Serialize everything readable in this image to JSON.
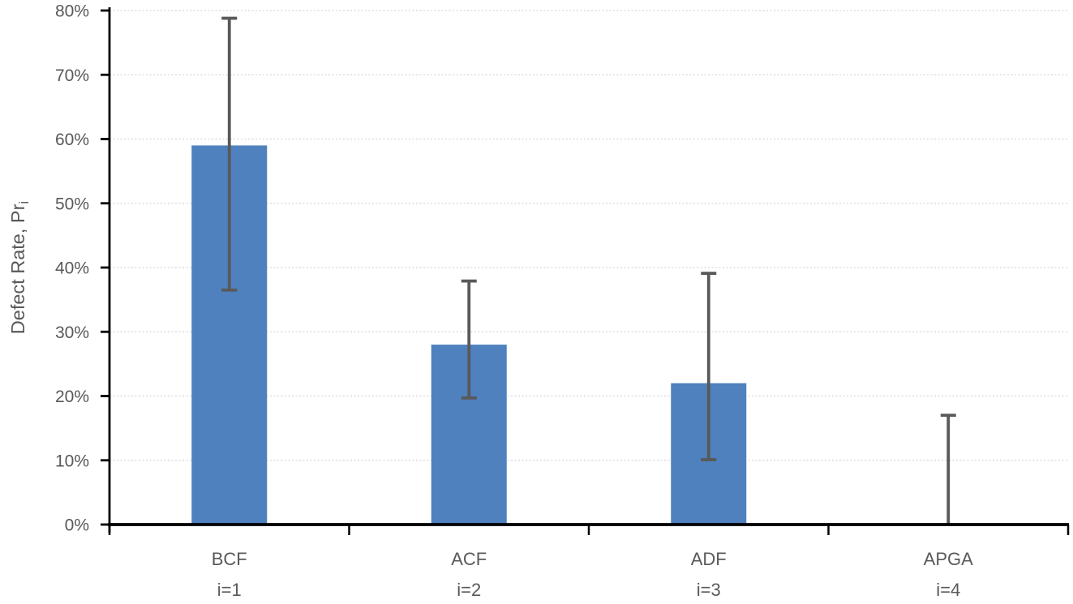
{
  "chart_data": {
    "type": "bar",
    "title": "",
    "categories": [
      "BCF",
      "ACF",
      "ADF",
      "APGA"
    ],
    "category_sublabels": [
      "i=1",
      "i=2",
      "i=3",
      "i=4"
    ],
    "series": [
      {
        "name": "Defect Rate",
        "values": [
          59,
          28,
          22,
          0
        ]
      }
    ],
    "error_bars": {
      "low": [
        36.5,
        19.7,
        10.1,
        0
      ],
      "high": [
        78.8,
        37.9,
        39.1,
        17.0
      ]
    },
    "xlabel": "",
    "ylabel_main": "Defect Rate, Pr",
    "ylabel_subscript": "i",
    "ylim": [
      0,
      80
    ],
    "ytick_step": 10,
    "ytick_labels": [
      "0%",
      "10%",
      "20%",
      "30%",
      "40%",
      "50%",
      "60%",
      "70%",
      "80%"
    ],
    "grid": true,
    "legend": "none",
    "colors": {
      "bar": "#4E81BD",
      "error_bar": "#595959",
      "gridline": "#D6D6D6",
      "axis": "#000000",
      "text": "#595959"
    }
  }
}
